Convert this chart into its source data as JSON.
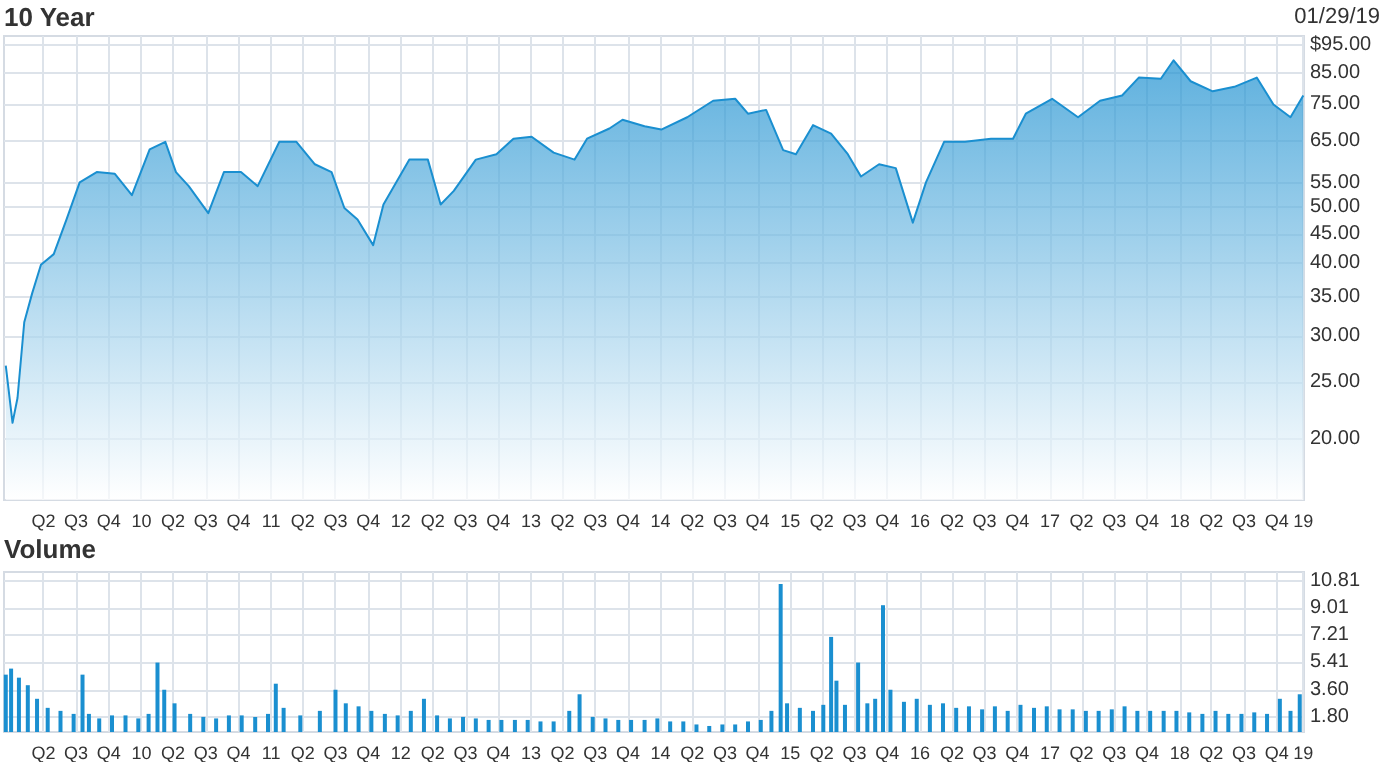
{
  "chart_data": [
    {
      "type": "area",
      "title": "10 Year",
      "annotations": [
        "01/29/19"
      ],
      "color": "#1a8fd0",
      "log": "y",
      "grid": true,
      "x": [
        "2009-01-29",
        "2009-02-17",
        "2009-03-03",
        "2009-03-22",
        "2009-04-13",
        "2009-05-08",
        "2009-06-13",
        "2009-07-19",
        "2009-08-25",
        "2009-10-12",
        "2009-12-02",
        "2010-01-19",
        "2010-03-10",
        "2010-04-23",
        "2010-05-23",
        "2010-06-28",
        "2010-08-22",
        "2010-10-05",
        "2010-11-22",
        "2011-01-08",
        "2011-03-10",
        "2011-04-27",
        "2011-06-18",
        "2011-08-04",
        "2011-09-09",
        "2011-10-16",
        "2011-11-29",
        "2011-12-28",
        "2012-03-10",
        "2012-05-01",
        "2012-06-06",
        "2012-07-13",
        "2012-09-13",
        "2012-11-10",
        "2012-12-28",
        "2013-02-17",
        "2013-04-20",
        "2013-06-18",
        "2013-07-23",
        "2013-09-24",
        "2013-10-31",
        "2014-01-01",
        "2014-02-17",
        "2014-05-01",
        "2014-07-13",
        "2014-09-13",
        "2014-10-19",
        "2014-12-09",
        "2015-01-26",
        "2015-03-03",
        "2015-04-20",
        "2015-06-10",
        "2015-07-27",
        "2015-09-02",
        "2015-10-23",
        "2015-12-09",
        "2016-01-26",
        "2016-03-03",
        "2016-04-23",
        "2016-06-21",
        "2016-09-02",
        "2016-11-03",
        "2016-12-09",
        "2017-02-21",
        "2017-05-05",
        "2017-07-06",
        "2017-09-06",
        "2017-10-23",
        "2017-12-24",
        "2018-01-29",
        "2018-03-18",
        "2018-05-19",
        "2018-07-19",
        "2018-09-20",
        "2018-11-06",
        "2018-12-24",
        "2019-01-29"
      ],
      "values": [
        26.7,
        21.3,
        23.5,
        31.7,
        35.5,
        39.8,
        41.5,
        47.6,
        55.1,
        57.4,
        57,
        52.4,
        62.8,
        64.7,
        57.4,
        54.3,
        48.8,
        57.4,
        57.4,
        54.3,
        64.7,
        64.7,
        59.2,
        57.4,
        49.8,
        47.6,
        43,
        50.5,
        60.3,
        60.3,
        50.5,
        53.3,
        60.3,
        61.6,
        65.5,
        66,
        62,
        60.3,
        65.5,
        68.2,
        70.6,
        68.8,
        67.9,
        71.3,
        76.1,
        76.7,
        72.3,
        73.4,
        62.6,
        61.6,
        69.1,
        66.8,
        61.6,
        56.4,
        59.2,
        58.3,
        47,
        55.1,
        64.7,
        64.7,
        65.5,
        65.5,
        72.3,
        76.7,
        71.3,
        76.1,
        77.7,
        83.4,
        83,
        89.3,
        82.2,
        79,
        80.4,
        83.4,
        75,
        71.3,
        77.7
      ],
      "xlim": [
        "2009-01-24",
        "2019-01-31"
      ],
      "xticks": [
        {
          "value": "2009-05-15",
          "label": "Q2"
        },
        {
          "value": "2009-08-15",
          "label": "Q3"
        },
        {
          "value": "2009-11-15",
          "label": "Q4"
        },
        {
          "value": "2010-02-15",
          "label": "10"
        },
        {
          "value": "2010-05-15",
          "label": "Q2"
        },
        {
          "value": "2010-08-15",
          "label": "Q3"
        },
        {
          "value": "2010-11-15",
          "label": "Q4"
        },
        {
          "value": "2011-02-15",
          "label": "11"
        },
        {
          "value": "2011-05-15",
          "label": "Q2"
        },
        {
          "value": "2011-08-15",
          "label": "Q3"
        },
        {
          "value": "2011-11-15",
          "label": "Q4"
        },
        {
          "value": "2012-02-15",
          "label": "12"
        },
        {
          "value": "2012-05-15",
          "label": "Q2"
        },
        {
          "value": "2012-08-15",
          "label": "Q3"
        },
        {
          "value": "2012-11-15",
          "label": "Q4"
        },
        {
          "value": "2013-02-15",
          "label": "13"
        },
        {
          "value": "2013-05-15",
          "label": "Q2"
        },
        {
          "value": "2013-08-15",
          "label": "Q3"
        },
        {
          "value": "2013-11-15",
          "label": "Q4"
        },
        {
          "value": "2014-02-15",
          "label": "14"
        },
        {
          "value": "2014-05-15",
          "label": "Q2"
        },
        {
          "value": "2014-08-15",
          "label": "Q3"
        },
        {
          "value": "2014-11-15",
          "label": "Q4"
        },
        {
          "value": "2015-02-15",
          "label": "15"
        },
        {
          "value": "2015-05-15",
          "label": "Q2"
        },
        {
          "value": "2015-08-15",
          "label": "Q3"
        },
        {
          "value": "2015-11-15",
          "label": "Q4"
        },
        {
          "value": "2016-02-15",
          "label": "16"
        },
        {
          "value": "2016-05-15",
          "label": "Q2"
        },
        {
          "value": "2016-08-15",
          "label": "Q3"
        },
        {
          "value": "2016-11-15",
          "label": "Q4"
        },
        {
          "value": "2017-02-15",
          "label": "17"
        },
        {
          "value": "2017-05-15",
          "label": "Q2"
        },
        {
          "value": "2017-08-15",
          "label": "Q3"
        },
        {
          "value": "2017-11-15",
          "label": "Q4"
        },
        {
          "value": "2018-02-15",
          "label": "18"
        },
        {
          "value": "2018-05-15",
          "label": "Q2"
        },
        {
          "value": "2018-08-15",
          "label": "Q3"
        },
        {
          "value": "2018-11-15",
          "label": "Q4"
        },
        {
          "value": "2019-01-29",
          "label": "19"
        }
      ],
      "ylim": [
        15.7,
        98.3
      ],
      "yticks": [
        {
          "value": 20,
          "label": "20.00"
        },
        {
          "value": 25,
          "label": "25.00"
        },
        {
          "value": 30,
          "label": "30.00"
        },
        {
          "value": 35,
          "label": "35.00"
        },
        {
          "value": 40,
          "label": "40.00"
        },
        {
          "value": 45,
          "label": "45.00"
        },
        {
          "value": 50,
          "label": "50.00"
        },
        {
          "value": 55,
          "label": "55.00"
        },
        {
          "value": 65,
          "label": "65.00"
        },
        {
          "value": 75,
          "label": "75.00"
        },
        {
          "value": 85,
          "label": "85.00"
        },
        {
          "value": 95,
          "label": "$95.00"
        }
      ]
    },
    {
      "type": "bar",
      "title": "Volume",
      "color": "#1a8fd0",
      "grid": true,
      "x": [
        "2009-01-29",
        "2009-02-13",
        "2009-03-07",
        "2009-04-01",
        "2009-04-27",
        "2009-05-27",
        "2009-07-02",
        "2009-08-08",
        "2009-09-02",
        "2009-09-20",
        "2009-10-19",
        "2009-11-24",
        "2010-01-01",
        "2010-02-06",
        "2010-03-07",
        "2010-04-01",
        "2010-04-20",
        "2010-05-19",
        "2010-07-02",
        "2010-08-08",
        "2010-09-13",
        "2010-10-19",
        "2010-11-24",
        "2011-01-01",
        "2011-02-06",
        "2011-02-28",
        "2011-03-22",
        "2011-05-08",
        "2011-07-02",
        "2011-08-15",
        "2011-09-13",
        "2011-10-19",
        "2011-11-24",
        "2012-01-01",
        "2012-02-06",
        "2012-03-14",
        "2012-04-20",
        "2012-05-27",
        "2012-07-02",
        "2012-08-08",
        "2012-09-13",
        "2012-10-19",
        "2012-11-24",
        "2013-01-01",
        "2013-02-06",
        "2013-03-14",
        "2013-04-20",
        "2013-06-03",
        "2013-07-02",
        "2013-08-08",
        "2013-09-13",
        "2013-10-19",
        "2013-11-24",
        "2014-01-01",
        "2014-02-06",
        "2014-03-14",
        "2014-04-20",
        "2014-05-27",
        "2014-07-02",
        "2014-08-08",
        "2014-09-13",
        "2014-10-19",
        "2014-11-24",
        "2014-12-24",
        "2015-01-19",
        "2015-02-06",
        "2015-03-14",
        "2015-04-20",
        "2015-05-19",
        "2015-06-10",
        "2015-06-25",
        "2015-07-19",
        "2015-08-25",
        "2015-09-20",
        "2015-10-12",
        "2015-11-03",
        "2015-11-24",
        "2016-01-01",
        "2016-02-06",
        "2016-03-14",
        "2016-04-20",
        "2016-05-27",
        "2016-07-02",
        "2016-08-08",
        "2016-09-13",
        "2016-10-19",
        "2016-11-24",
        "2017-01-01",
        "2017-02-06",
        "2017-03-14",
        "2017-04-20",
        "2017-05-27",
        "2017-07-02",
        "2017-08-08",
        "2017-09-13",
        "2017-10-19",
        "2017-11-24",
        "2018-01-01",
        "2018-02-06",
        "2018-03-14",
        "2018-04-20",
        "2018-05-27",
        "2018-07-02",
        "2018-08-08",
        "2018-09-13",
        "2018-10-19",
        "2018-11-24",
        "2018-12-24",
        "2019-01-19"
      ],
      "values": [
        4.6,
        5.0,
        4.4,
        3.9,
        3.0,
        2.4,
        2.2,
        2.0,
        4.6,
        2.0,
        1.7,
        1.9,
        1.9,
        1.7,
        2.0,
        5.4,
        3.6,
        2.7,
        2.0,
        1.8,
        1.7,
        1.9,
        1.9,
        1.8,
        2.0,
        4.0,
        2.4,
        1.9,
        2.2,
        3.6,
        2.7,
        2.5,
        2.2,
        2.0,
        1.9,
        2.2,
        3.0,
        1.9,
        1.7,
        1.8,
        1.7,
        1.6,
        1.6,
        1.6,
        1.6,
        1.5,
        1.5,
        2.2,
        3.3,
        1.8,
        1.7,
        1.6,
        1.6,
        1.6,
        1.7,
        1.5,
        1.5,
        1.3,
        1.2,
        1.3,
        1.3,
        1.5,
        1.6,
        2.2,
        10.6,
        2.7,
        2.4,
        2.2,
        2.6,
        7.1,
        4.2,
        2.6,
        5.4,
        2.7,
        3.0,
        9.2,
        3.6,
        2.8,
        3.0,
        2.6,
        2.7,
        2.4,
        2.5,
        2.3,
        2.5,
        2.2,
        2.6,
        2.4,
        2.5,
        2.3,
        2.3,
        2.2,
        2.2,
        2.3,
        2.5,
        2.2,
        2.2,
        2.2,
        2.2,
        2.1,
        2.0,
        2.2,
        2.0,
        2.0,
        2.1,
        2.0,
        3.0,
        2.2,
        3.3
      ],
      "xlim": [
        "2009-01-24",
        "2019-01-31"
      ],
      "xticks": [
        {
          "value": "2009-05-15",
          "label": "Q2"
        },
        {
          "value": "2009-08-15",
          "label": "Q3"
        },
        {
          "value": "2009-11-15",
          "label": "Q4"
        },
        {
          "value": "2010-02-15",
          "label": "10"
        },
        {
          "value": "2010-05-15",
          "label": "Q2"
        },
        {
          "value": "2010-08-15",
          "label": "Q3"
        },
        {
          "value": "2010-11-15",
          "label": "Q4"
        },
        {
          "value": "2011-02-15",
          "label": "11"
        },
        {
          "value": "2011-05-15",
          "label": "Q2"
        },
        {
          "value": "2011-08-15",
          "label": "Q3"
        },
        {
          "value": "2011-11-15",
          "label": "Q4"
        },
        {
          "value": "2012-02-15",
          "label": "12"
        },
        {
          "value": "2012-05-15",
          "label": "Q2"
        },
        {
          "value": "2012-08-15",
          "label": "Q3"
        },
        {
          "value": "2012-11-15",
          "label": "Q4"
        },
        {
          "value": "2013-02-15",
          "label": "13"
        },
        {
          "value": "2013-05-15",
          "label": "Q2"
        },
        {
          "value": "2013-08-15",
          "label": "Q3"
        },
        {
          "value": "2013-11-15",
          "label": "Q4"
        },
        {
          "value": "2014-02-15",
          "label": "14"
        },
        {
          "value": "2014-05-15",
          "label": "Q2"
        },
        {
          "value": "2014-08-15",
          "label": "Q3"
        },
        {
          "value": "2014-11-15",
          "label": "Q4"
        },
        {
          "value": "2015-02-15",
          "label": "15"
        },
        {
          "value": "2015-05-15",
          "label": "Q2"
        },
        {
          "value": "2015-08-15",
          "label": "Q3"
        },
        {
          "value": "2015-11-15",
          "label": "Q4"
        },
        {
          "value": "2016-02-15",
          "label": "16"
        },
        {
          "value": "2016-05-15",
          "label": "Q2"
        },
        {
          "value": "2016-08-15",
          "label": "Q3"
        },
        {
          "value": "2016-11-15",
          "label": "Q4"
        },
        {
          "value": "2017-02-15",
          "label": "17"
        },
        {
          "value": "2017-05-15",
          "label": "Q2"
        },
        {
          "value": "2017-08-15",
          "label": "Q3"
        },
        {
          "value": "2017-11-15",
          "label": "Q4"
        },
        {
          "value": "2018-02-15",
          "label": "18"
        },
        {
          "value": "2018-05-15",
          "label": "Q2"
        },
        {
          "value": "2018-08-15",
          "label": "Q3"
        },
        {
          "value": "2018-11-15",
          "label": "Q4"
        },
        {
          "value": "2019-01-29",
          "label": "19"
        }
      ],
      "ylim": [
        0.8,
        11.4
      ],
      "yticks": [
        {
          "value": 1.8,
          "label": "1.80"
        },
        {
          "value": 3.6,
          "label": "3.60"
        },
        {
          "value": 5.41,
          "label": "5.41"
        },
        {
          "value": 7.21,
          "label": "7.21"
        },
        {
          "value": 9.01,
          "label": "9.01"
        },
        {
          "value": 10.81,
          "label": "10.81"
        }
      ]
    }
  ]
}
